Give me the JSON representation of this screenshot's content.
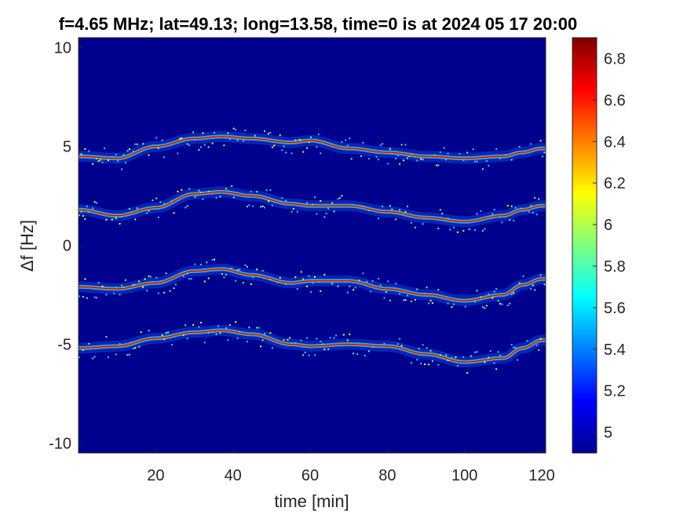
{
  "chart_data": {
    "type": "heatmap",
    "title": "f=4.65 MHz;  lat=49.13; long=13.58, time=0 is at 2024 05 17 20:00",
    "xlabel": "time [min]",
    "ylabel": "Δf [Hz]",
    "xlim": [
      0,
      121
    ],
    "ylim": [
      -10.5,
      10.5
    ],
    "x_ticks": [
      20,
      40,
      60,
      80,
      100,
      120
    ],
    "x_tick_labels": [
      "20",
      "40",
      "60",
      "80",
      "100",
      "120"
    ],
    "y_ticks": [
      10,
      5,
      0,
      -5,
      -10
    ],
    "y_tick_labels": [
      "10",
      "5",
      "0",
      "-5",
      "-10"
    ],
    "colorbar": {
      "colormap": "jet",
      "clim": [
        4.9,
        6.9
      ],
      "ticks": [
        6.8,
        6.6,
        6.4,
        6.2,
        6,
        5.8,
        5.6,
        5.4,
        5.2,
        5
      ],
      "tick_labels": [
        "6.8",
        "6.6",
        "6.4",
        "6.2",
        "6",
        "5.8",
        "5.6",
        "5.4",
        "5.2",
        "5"
      ]
    },
    "background_color": "#00008F",
    "traces": [
      {
        "time": [
          0,
          10,
          20,
          30,
          37,
          45,
          55,
          60,
          70,
          80,
          90,
          100,
          110,
          115,
          120
        ],
        "df": [
          4.5,
          4.4,
          5.0,
          5.4,
          5.5,
          5.4,
          5.2,
          5.3,
          4.9,
          4.7,
          4.5,
          4.4,
          4.5,
          4.7,
          4.9
        ]
      },
      {
        "time": [
          0,
          10,
          20,
          30,
          37,
          45,
          55,
          60,
          70,
          80,
          90,
          100,
          110,
          115,
          120
        ],
        "df": [
          1.8,
          1.5,
          1.9,
          2.6,
          2.7,
          2.5,
          2.1,
          2.0,
          2.0,
          1.7,
          1.4,
          1.2,
          1.5,
          1.8,
          2.0
        ]
      },
      {
        "time": [
          0,
          10,
          20,
          30,
          37,
          45,
          55,
          60,
          70,
          80,
          90,
          100,
          110,
          115,
          120
        ],
        "df": [
          -2.1,
          -2.2,
          -1.9,
          -1.3,
          -1.2,
          -1.5,
          -1.9,
          -1.8,
          -1.8,
          -2.2,
          -2.5,
          -2.8,
          -2.5,
          -2.0,
          -1.7
        ]
      },
      {
        "time": [
          0,
          10,
          20,
          30,
          37,
          45,
          55,
          60,
          70,
          80,
          90,
          100,
          110,
          115,
          120
        ],
        "df": [
          -5.2,
          -5.1,
          -4.7,
          -4.4,
          -4.3,
          -4.5,
          -5.0,
          -5.1,
          -5.0,
          -5.1,
          -5.5,
          -5.9,
          -5.7,
          -5.2,
          -4.8
        ]
      }
    ]
  }
}
